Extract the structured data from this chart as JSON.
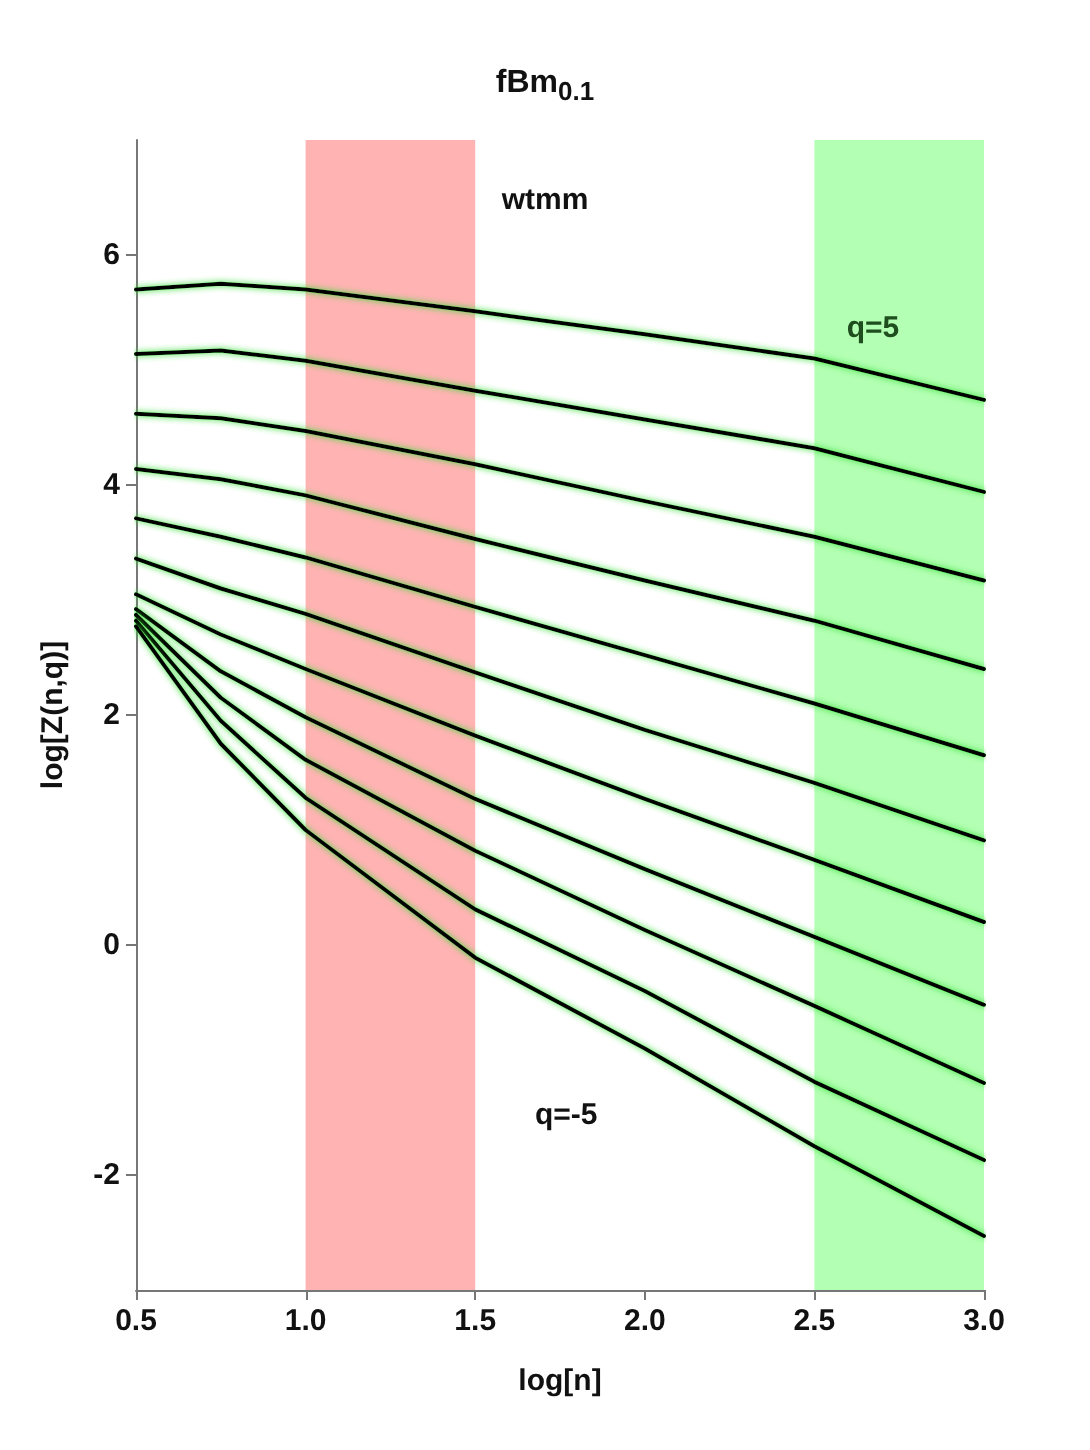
{
  "chart_data": {
    "type": "line",
    "title": "fBm$_{0.1}$",
    "xlabel": "log[n]",
    "ylabel": "log[Z(n,q)]",
    "annotations": [
      "wtmm",
      "q=5",
      "q=-5"
    ],
    "x": [
      0.5,
      0.75,
      1.0,
      1.5,
      2.0,
      2.5,
      3.0
    ],
    "series": [
      {
        "color": "#000000",
        "values": [
          5.7,
          5.75,
          5.7,
          5.51,
          5.31,
          5.1,
          4.74
        ]
      },
      {
        "color": "#000000",
        "values": [
          5.14,
          5.17,
          5.08,
          4.82,
          4.57,
          4.32,
          3.94
        ]
      },
      {
        "color": "#000000",
        "values": [
          4.62,
          4.58,
          4.47,
          4.18,
          3.86,
          3.55,
          3.17
        ]
      },
      {
        "color": "#000000",
        "values": [
          4.14,
          4.05,
          3.91,
          3.53,
          3.17,
          2.82,
          2.4
        ]
      },
      {
        "color": "#000000",
        "values": [
          3.71,
          3.55,
          3.37,
          2.94,
          2.52,
          2.1,
          1.65
        ]
      },
      {
        "color": "#000000",
        "values": [
          3.36,
          3.1,
          2.88,
          2.37,
          1.87,
          1.41,
          0.91
        ]
      },
      {
        "color": "#000000",
        "values": [
          3.05,
          2.7,
          2.4,
          1.82,
          1.27,
          0.74,
          0.2
        ]
      },
      {
        "color": "#000000",
        "values": [
          2.92,
          2.38,
          1.98,
          1.27,
          0.66,
          0.07,
          -0.52
        ]
      },
      {
        "color": "#000000",
        "values": [
          2.87,
          2.15,
          1.61,
          0.82,
          0.13,
          -0.53,
          -1.2
        ]
      },
      {
        "color": "#000000",
        "values": [
          2.82,
          1.95,
          1.28,
          0.31,
          -0.4,
          -1.19,
          -1.87
        ]
      },
      {
        "color": "#000000",
        "values": [
          2.77,
          1.75,
          1.0,
          -0.11,
          -0.9,
          -1.75,
          -2.53
        ]
      }
    ],
    "bands": [
      {
        "axis": "x",
        "from": 1.0,
        "to": 1.5,
        "color": "#ffb3b3"
      },
      {
        "axis": "x",
        "from": 2.5,
        "to": 3.0,
        "color": "#b3ffb3"
      }
    ],
    "xlim": [
      0.5,
      3.0
    ],
    "xticks": [
      0.5,
      {
        "value": 1.0,
        "label": "1.0"
      },
      1.5,
      {
        "value": 2.0,
        "label": "2.0"
      },
      2.5,
      {
        "value": 3.0,
        "label": "3.0"
      }
    ],
    "ylim": [
      -3,
      7
    ],
    "yticks": [
      -2,
      0,
      2,
      4,
      6
    ],
    "grid": false,
    "marker": "none",
    "line_style": "solid"
  }
}
